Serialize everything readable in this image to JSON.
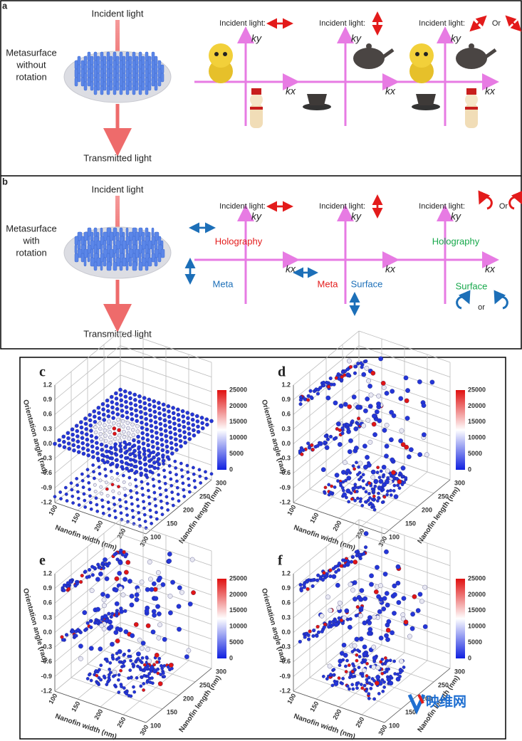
{
  "panel_a": {
    "label": "a",
    "incident": "Incident light",
    "metasurface": [
      "Metasurface",
      "without",
      "rotation"
    ],
    "transmitted": "Transmitted light",
    "k_space": [
      {
        "incident": "Incident light:",
        "ky": "ky",
        "kx": "kx"
      },
      {
        "incident": "Incident light:",
        "ky": "ky",
        "kx": "kx"
      },
      {
        "incident": "Incident light:",
        "or": "Or",
        "ky": "ky",
        "kx": "kx"
      }
    ]
  },
  "panel_b": {
    "label": "b",
    "incident": "Incident light",
    "metasurface": [
      "Metasurface",
      "with",
      "rotation"
    ],
    "transmitted": "Transmitted light",
    "k_space": [
      {
        "incident": "Incident light:",
        "ky": "ky",
        "kx": "kx",
        "holography": "Holography",
        "meta": "Meta"
      },
      {
        "incident": "Incident light:",
        "ky": "ky",
        "kx": "kx",
        "meta": "Meta",
        "surface": "Surface"
      },
      {
        "incident": "Incident light:",
        "or": "Or",
        "ky": "ky",
        "kx": "kx",
        "holography": "Holography",
        "surface": "Surface",
        "or_bottom": "or"
      }
    ]
  },
  "plots": [
    {
      "label": "c",
      "z_title": "Orientation angle (rad)",
      "x_title": "Nanofin width (nm)",
      "y_title": "Nanofin length (nm)",
      "zticks": [
        "1.2",
        "0.9",
        "0.6",
        "0.3",
        "0.0",
        "-0.3",
        "-0.6",
        "-0.9",
        "-1.2"
      ],
      "xticks": [
        "100",
        "150",
        "200",
        "250",
        "300"
      ],
      "yticks": [
        "100",
        "150",
        "200",
        "250",
        "300"
      ],
      "colorbar_ticks": [
        "25000",
        "20000",
        "15000",
        "10000",
        "5000",
        "0"
      ]
    },
    {
      "label": "d",
      "z_title": "Orientation angle (rad)",
      "x_title": "Nanofin width (nm)",
      "y_title": "Nanofin length (nm)",
      "zticks": [
        "1.2",
        "0.9",
        "0.6",
        "0.3",
        "0.0",
        "-0.3",
        "-0.6",
        "-0.9",
        "-1.2"
      ],
      "xticks": [
        "100",
        "150",
        "200",
        "250",
        "300"
      ],
      "yticks": [
        "100",
        "150",
        "200",
        "250",
        "300"
      ],
      "colorbar_ticks": [
        "25000",
        "20000",
        "15000",
        "10000",
        "5000",
        "0"
      ]
    },
    {
      "label": "e",
      "z_title": "Orientation angle (rad)",
      "x_title": "Nanofin width (nm)",
      "y_title": "Nanofin length (nm)",
      "zticks": [
        "1.2",
        "0.9",
        "0.6",
        "0.3",
        "0.0",
        "-0.3",
        "-0.6",
        "-0.9",
        "-1.2"
      ],
      "xticks": [
        "100",
        "150",
        "200",
        "250",
        "300"
      ],
      "yticks": [
        "100",
        "150",
        "200",
        "250",
        "300"
      ],
      "colorbar_ticks": [
        "25000",
        "20000",
        "15000",
        "10000",
        "5000",
        "0"
      ]
    },
    {
      "label": "f",
      "z_title": "Orientation angle (rad)",
      "x_title": "Nanofin width (nm)",
      "y_title": "Nanofin length (nm)",
      "zticks": [
        "1.2",
        "0.9",
        "0.6",
        "0.3",
        "0.0",
        "-0.3",
        "-0.6",
        "-0.9",
        "-1.2"
      ],
      "xticks": [
        "100",
        "150",
        "200",
        "250",
        "300"
      ],
      "yticks": [
        "100",
        "150",
        "200",
        "250",
        "300"
      ],
      "colorbar_ticks": [
        "25000",
        "20000",
        "15000",
        "10000",
        "5000",
        "0"
      ]
    }
  ],
  "watermark": "映维网"
}
